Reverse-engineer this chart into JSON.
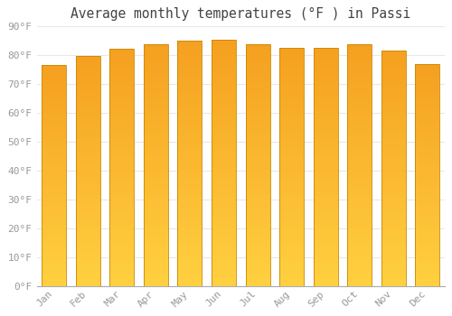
{
  "title": "Average monthly temperatures (°F ) in Passi",
  "months": [
    "Jan",
    "Feb",
    "Mar",
    "Apr",
    "May",
    "Jun",
    "Jul",
    "Aug",
    "Sep",
    "Oct",
    "Nov",
    "Dec"
  ],
  "values": [
    76.5,
    79.7,
    82.2,
    83.7,
    84.9,
    85.1,
    83.7,
    82.4,
    82.4,
    83.7,
    81.5,
    76.8
  ],
  "ylim": [
    0,
    90
  ],
  "yticks": [
    0,
    10,
    20,
    30,
    40,
    50,
    60,
    70,
    80,
    90
  ],
  "ytick_labels": [
    "0°F",
    "10°F",
    "20°F",
    "30°F",
    "40°F",
    "50°F",
    "60°F",
    "70°F",
    "80°F",
    "90°F"
  ],
  "bar_color_bottom": "#FFD040",
  "bar_color_top": "#F5A020",
  "bar_edge_color": "#C88800",
  "background_color": "#ffffff",
  "grid_color": "#e8e8e8",
  "title_fontsize": 10.5,
  "tick_fontsize": 8,
  "tick_color": "#999999",
  "bar_width": 0.72
}
